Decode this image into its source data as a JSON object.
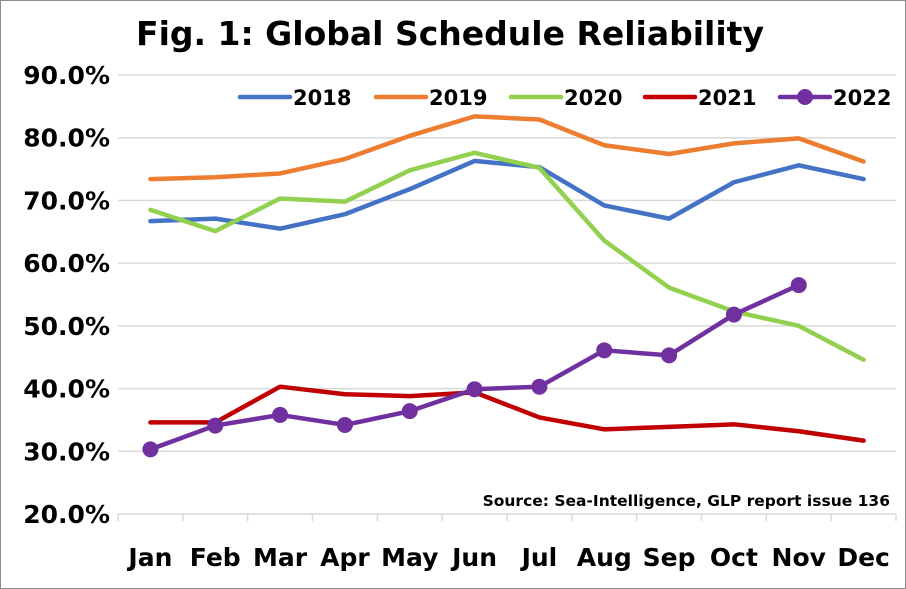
{
  "chart_data": {
    "type": "line",
    "title": "Fig. 1: Global Schedule Reliability",
    "source": "Source: Sea-Intelligence, GLP report issue 136",
    "categories": [
      "Jan",
      "Feb",
      "Mar",
      "Apr",
      "May",
      "Jun",
      "Jul",
      "Aug",
      "Sep",
      "Oct",
      "Nov",
      "Dec"
    ],
    "ylim": [
      20,
      90
    ],
    "yticks": [
      20,
      30,
      40,
      50,
      60,
      70,
      80,
      90
    ],
    "ytick_labels": [
      "20.0%",
      "30.0%",
      "40.0%",
      "50.0%",
      "60.0%",
      "70.0%",
      "80.0%",
      "90.0%"
    ],
    "grid": true,
    "legend_position": "top",
    "series": [
      {
        "name": "2018",
        "color": "#4472c4",
        "markers": false,
        "values": [
          66.7,
          67.1,
          65.5,
          67.8,
          71.8,
          76.3,
          75.3,
          69.2,
          67.1,
          72.9,
          75.6,
          73.4
        ]
      },
      {
        "name": "2019",
        "color": "#ed7d31",
        "markers": false,
        "values": [
          73.4,
          73.7,
          74.3,
          76.6,
          80.3,
          83.4,
          82.9,
          78.8,
          77.4,
          79.1,
          79.9,
          76.2
        ]
      },
      {
        "name": "2020",
        "color": "#92d050",
        "markers": false,
        "values": [
          68.5,
          65.1,
          70.3,
          69.8,
          74.8,
          77.6,
          75.2,
          63.6,
          56.1,
          52.3,
          50.0,
          44.6
        ]
      },
      {
        "name": "2021",
        "color": "#c00000",
        "markers": false,
        "values": [
          34.6,
          34.6,
          40.3,
          39.1,
          38.8,
          39.4,
          35.4,
          33.5,
          33.9,
          34.3,
          33.2,
          31.7
        ]
      },
      {
        "name": "2022",
        "color": "#7030a0",
        "markers": true,
        "values": [
          30.3,
          34.1,
          35.8,
          34.2,
          36.4,
          39.9,
          40.3,
          46.1,
          45.3,
          51.8,
          56.5,
          null
        ]
      }
    ]
  }
}
